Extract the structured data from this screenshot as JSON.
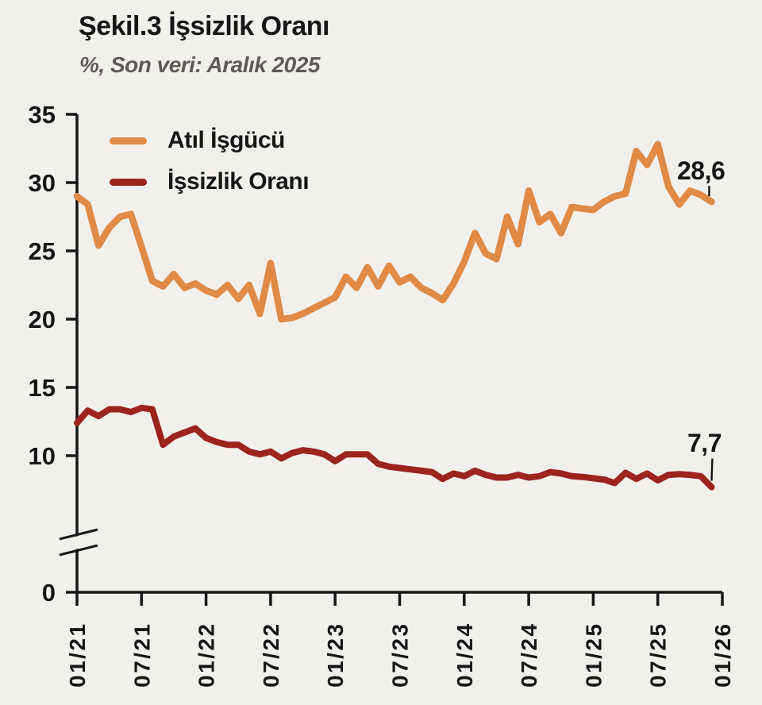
{
  "header": {
    "title": "Şekil.3 İşsizlik Oranı",
    "subtitle": "%, Son veri: Aralık 2025"
  },
  "legend": [
    {
      "label": "Atıl İşgücü",
      "color": "#e08a45"
    },
    {
      "label": "İşsizlik Oranı",
      "color": "#9c241c"
    }
  ],
  "annotations": {
    "last_orange": "28,6",
    "last_red": "7,7"
  },
  "colors": {
    "background": "#f2f0ed",
    "axis": "#161616",
    "subtitle_gray": "#5d5a58",
    "orange_series": "#e08a45",
    "red_series": "#9c241c"
  },
  "chart_data": {
    "type": "line",
    "title": "Şekil.3 İşsizlik Oranı",
    "subtitle": "%, Son veri: Aralık 2025",
    "ylim": [
      0,
      35
    ],
    "grid": false,
    "axis_break_between": [
      0,
      10
    ],
    "legend_position": "top-left",
    "y_ticks": [
      {
        "value": 35,
        "label": "35"
      },
      {
        "value": 30,
        "label": "30"
      },
      {
        "value": 25,
        "label": "25"
      },
      {
        "value": 20,
        "label": "20"
      },
      {
        "value": 15,
        "label": "15"
      },
      {
        "value": 10,
        "label": "10"
      },
      {
        "value": 0,
        "label": "0"
      }
    ],
    "x_ticks": [
      {
        "m": 0,
        "label": "01/21"
      },
      {
        "m": 6,
        "label": "07/21"
      },
      {
        "m": 12,
        "label": "01/22"
      },
      {
        "m": 18,
        "label": "07/22"
      },
      {
        "m": 24,
        "label": "01/23"
      },
      {
        "m": 30,
        "label": "07/23"
      },
      {
        "m": 36,
        "label": "01/24"
      },
      {
        "m": 42,
        "label": "07/24"
      },
      {
        "m": 48,
        "label": "01/25"
      },
      {
        "m": 54,
        "label": "07/25"
      },
      {
        "m": 60,
        "label": "01/26"
      }
    ],
    "months": [
      "01/21",
      "02/21",
      "03/21",
      "04/21",
      "05/21",
      "06/21",
      "07/21",
      "08/21",
      "09/21",
      "10/21",
      "11/21",
      "12/21",
      "01/22",
      "02/22",
      "03/22",
      "04/22",
      "05/22",
      "06/22",
      "07/22",
      "08/22",
      "09/22",
      "10/22",
      "11/22",
      "12/22",
      "01/23",
      "02/23",
      "03/23",
      "04/23",
      "05/23",
      "06/23",
      "07/23",
      "08/23",
      "09/23",
      "10/23",
      "11/23",
      "12/23",
      "01/24",
      "02/24",
      "03/24",
      "04/24",
      "05/24",
      "06/24",
      "07/24",
      "08/24",
      "09/24",
      "10/24",
      "11/24",
      "12/24",
      "01/25",
      "02/25",
      "03/25",
      "04/25",
      "05/25",
      "06/25",
      "07/25",
      "08/25",
      "09/25",
      "10/25",
      "11/25",
      "12/25"
    ],
    "series": [
      {
        "name": "Atıl İşgücü",
        "color": "#e08a45",
        "last_value_label": "28,6",
        "values": [
          29.0,
          28.4,
          25.4,
          26.7,
          27.5,
          27.7,
          25.3,
          22.8,
          22.4,
          23.3,
          22.3,
          22.6,
          22.1,
          21.8,
          22.5,
          21.5,
          22.5,
          20.4,
          24.1,
          20.0,
          20.1,
          20.4,
          20.8,
          21.2,
          21.6,
          23.1,
          22.3,
          23.8,
          22.4,
          23.9,
          22.7,
          23.1,
          22.3,
          21.9,
          21.4,
          22.6,
          24.2,
          26.3,
          24.8,
          24.4,
          27.5,
          25.5,
          29.4,
          27.1,
          27.7,
          26.3,
          28.2,
          28.1,
          28.0,
          28.6,
          29.0,
          29.2,
          32.3,
          31.3,
          32.8,
          29.7,
          28.4,
          29.4,
          29.1,
          28.6
        ]
      },
      {
        "name": "İşsizlik Oranı",
        "color": "#9c241c",
        "last_value_label": "7,7",
        "values": [
          12.4,
          13.3,
          12.9,
          13.4,
          13.4,
          13.2,
          13.5,
          13.4,
          10.8,
          11.4,
          11.7,
          12.0,
          11.3,
          11.0,
          10.8,
          10.8,
          10.3,
          10.1,
          10.3,
          9.8,
          10.2,
          10.4,
          10.3,
          10.1,
          9.6,
          10.1,
          10.1,
          10.1,
          9.4,
          9.2,
          9.1,
          9.0,
          8.9,
          8.8,
          8.3,
          8.7,
          8.5,
          8.9,
          8.6,
          8.4,
          8.4,
          8.6,
          8.4,
          8.5,
          8.8,
          8.7,
          8.5,
          8.45,
          8.35,
          8.25,
          8.0,
          8.75,
          8.3,
          8.7,
          8.2,
          8.6,
          8.65,
          8.6,
          8.5,
          7.7
        ]
      }
    ]
  }
}
